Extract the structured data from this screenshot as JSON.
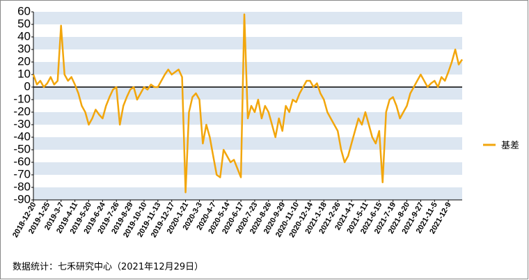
{
  "chart_data": {
    "type": "line",
    "categories": [
      "2018-12-20",
      null,
      null,
      null,
      "2019-1-25",
      null,
      null,
      null,
      "2019-3-7",
      null,
      null,
      null,
      "2019-4-11",
      null,
      null,
      null,
      "2019-5-20",
      null,
      null,
      null,
      "2019-6-24",
      null,
      null,
      null,
      "2019-7-26",
      null,
      null,
      null,
      "2019-8-29",
      null,
      null,
      null,
      "2019-10-10",
      null,
      null,
      null,
      "2019-11-13",
      null,
      null,
      null,
      "2019-12-17",
      null,
      null,
      null,
      "2020-1-21",
      null,
      null,
      null,
      "2020-3-3",
      null,
      null,
      null,
      "2020-4-7",
      null,
      null,
      null,
      "2020-5-14",
      null,
      null,
      null,
      "2020-6-17",
      null,
      null,
      null,
      "2020-7-23",
      null,
      null,
      null,
      "2020-8-26",
      null,
      null,
      null,
      "2020-9-29",
      null,
      null,
      null,
      "2020-11-10",
      null,
      null,
      null,
      "2020-12-14",
      null,
      null,
      null,
      "2021-1-18",
      null,
      null,
      null,
      "2021-2-26",
      null,
      null,
      null,
      "2021-4-1",
      null,
      null,
      null,
      "2021-5-11",
      null,
      null,
      null,
      "2021-6-15",
      null,
      null,
      null,
      "2021-7-19",
      null,
      null,
      null,
      "2021-8-20",
      null,
      null,
      null,
      "2021-9-27",
      null,
      null,
      null,
      "2021-11-5",
      null,
      null,
      null,
      "2021-12-9",
      null,
      null,
      null,
      null
    ],
    "series": [
      {
        "name": "基差",
        "color": "#f2a60c",
        "values": [
          10,
          2,
          5,
          0,
          3,
          8,
          2,
          5,
          49,
          10,
          5,
          8,
          2,
          -5,
          -15,
          -20,
          -30,
          -25,
          -18,
          -22,
          -25,
          -15,
          -8,
          -2,
          0,
          -30,
          -15,
          -8,
          -2,
          0,
          -10,
          -5,
          0,
          -2,
          2,
          0,
          0,
          5,
          10,
          14,
          10,
          12,
          14,
          8,
          -84,
          -20,
          -8,
          -5,
          -10,
          -45,
          -30,
          -40,
          -55,
          -70,
          -72,
          -50,
          -55,
          -60,
          -58,
          -65,
          -72,
          58,
          -25,
          -15,
          -20,
          -10,
          -25,
          -15,
          -20,
          -30,
          -40,
          -25,
          -35,
          -15,
          -20,
          -10,
          -12,
          -5,
          0,
          5,
          5,
          0,
          3,
          -5,
          -10,
          -20,
          -25,
          -30,
          -35,
          -50,
          -60,
          -55,
          -45,
          -35,
          -25,
          -30,
          -20,
          -30,
          -40,
          -45,
          -35,
          -76,
          -20,
          -10,
          -8,
          -15,
          -25,
          -20,
          -15,
          -5,
          0,
          5,
          10,
          5,
          0,
          3,
          5,
          0,
          8,
          5,
          12,
          20,
          30,
          18,
          22
        ]
      }
    ],
    "ylim": [
      -90,
      60
    ],
    "yticks": [
      -90,
      -80,
      -70,
      -60,
      -50,
      -40,
      -30,
      -20,
      -10,
      0,
      10,
      20,
      30,
      40,
      50,
      60
    ],
    "bands": true,
    "band_color": "#dce6f1",
    "legend": "right",
    "note": "数据统计：七禾研究中心（2021年12月29日）"
  }
}
